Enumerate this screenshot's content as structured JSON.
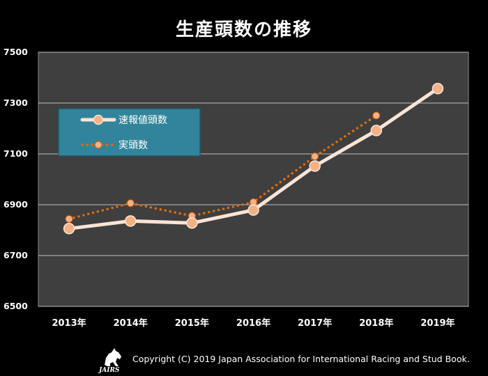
{
  "chart_data": {
    "type": "line",
    "title": "生産頭数の推移",
    "categories": [
      "2013年",
      "2014年",
      "2015年",
      "2016年",
      "2017年",
      "2018年",
      "2019年"
    ],
    "ylim": [
      6500,
      7500
    ],
    "yticks": [
      6500,
      6700,
      6900,
      7100,
      7300,
      7500
    ],
    "grid": true,
    "legend_position": "upper-left",
    "series": [
      {
        "name": "速報値頭数",
        "style": "solid",
        "color": "#fbe4d5",
        "values": [
          6806,
          6836,
          6828,
          6879,
          7052,
          7192,
          7357
        ]
      },
      {
        "name": "実頭数",
        "style": "dotted",
        "color": "#e46c0a",
        "values": [
          6844,
          6906,
          6856,
          6910,
          7090,
          7251,
          null
        ]
      }
    ]
  },
  "colors": {
    "background": "#000000",
    "plot_area": "#3f3f3f",
    "legend_box": "#31849b",
    "marker": "#f4b183"
  },
  "footer": {
    "logo_text": "JAIRS",
    "copyright": "Copyright (C) 2019 Japan Association for International Racing and Stud Book."
  }
}
